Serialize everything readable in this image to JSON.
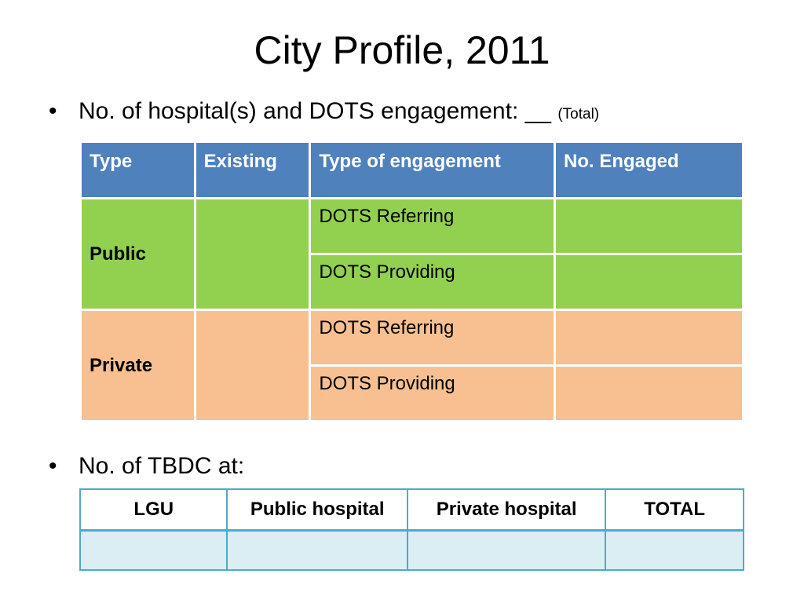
{
  "slide": {
    "title": "City Profile, 2011",
    "bullet1": {
      "text": "No. of hospital(s) and DOTS engagement: __",
      "note": "(Total)"
    },
    "bullet2": {
      "text": "No. of TBDC at:"
    },
    "bullet_symbol": "•"
  },
  "table1": {
    "headers": [
      "Type",
      "Existing",
      "Type of engagement",
      "No. Engaged"
    ],
    "groups": [
      {
        "type": "Public",
        "existing": "",
        "rows": [
          {
            "engagement": "DOTS Referring",
            "engaged": ""
          },
          {
            "engagement": "DOTS Providing",
            "engaged": ""
          }
        ]
      },
      {
        "type": "Private",
        "existing": "",
        "rows": [
          {
            "engagement": "DOTS Referring",
            "engaged": ""
          },
          {
            "engagement": "DOTS Providing",
            "engaged": ""
          }
        ]
      }
    ]
  },
  "table2": {
    "headers": [
      "LGU",
      "Public hospital",
      "Private hospital",
      "TOTAL"
    ],
    "row": [
      "",
      "",
      "",
      ""
    ]
  },
  "colors": {
    "header_blue": "#4f81bd",
    "public_green": "#92d050",
    "private_peach": "#f8c090",
    "tbdc_border": "#4bacc6",
    "tbdc_cell": "#dbeef4"
  }
}
